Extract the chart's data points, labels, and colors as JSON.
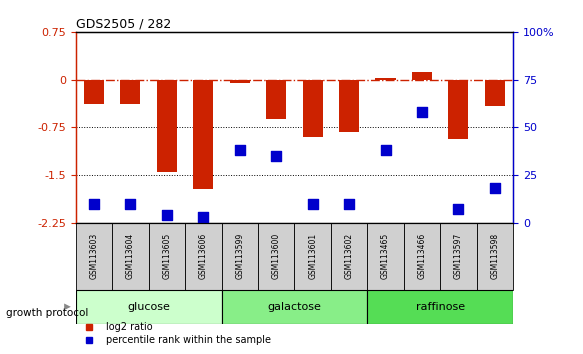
{
  "title": "GDS2505 / 282",
  "samples": [
    "GSM113603",
    "GSM113604",
    "GSM113605",
    "GSM113606",
    "GSM113599",
    "GSM113600",
    "GSM113601",
    "GSM113602",
    "GSM113465",
    "GSM113466",
    "GSM113597",
    "GSM113598"
  ],
  "log2_ratio": [
    -0.38,
    -0.38,
    -1.45,
    -1.72,
    -0.05,
    -0.62,
    -0.9,
    -0.82,
    0.02,
    0.12,
    -0.93,
    -0.42
  ],
  "percentile": [
    10,
    10,
    4,
    3,
    38,
    35,
    10,
    10,
    38,
    58,
    7,
    18
  ],
  "groups": [
    {
      "name": "glucose",
      "start": 0,
      "end": 4,
      "color": "#ccffcc"
    },
    {
      "name": "galactose",
      "start": 4,
      "end": 8,
      "color": "#88ee88"
    },
    {
      "name": "raffinose",
      "start": 8,
      "end": 12,
      "color": "#55dd55"
    }
  ],
  "ylim": [
    -2.25,
    0.75
  ],
  "yticks_left": [
    0.75,
    0,
    -0.75,
    -1.5,
    -2.25
  ],
  "right_yticks": [
    100,
    75,
    50,
    25,
    0
  ],
  "bar_color": "#cc2200",
  "dot_color": "#0000cc",
  "hline_y": 0,
  "dotted_lines": [
    -0.75,
    -1.5
  ],
  "bar_width": 0.55,
  "dot_size": 45,
  "legend_items": [
    {
      "label": "log2 ratio",
      "color": "#cc2200"
    },
    {
      "label": "percentile rank within the sample",
      "color": "#0000cc"
    }
  ]
}
